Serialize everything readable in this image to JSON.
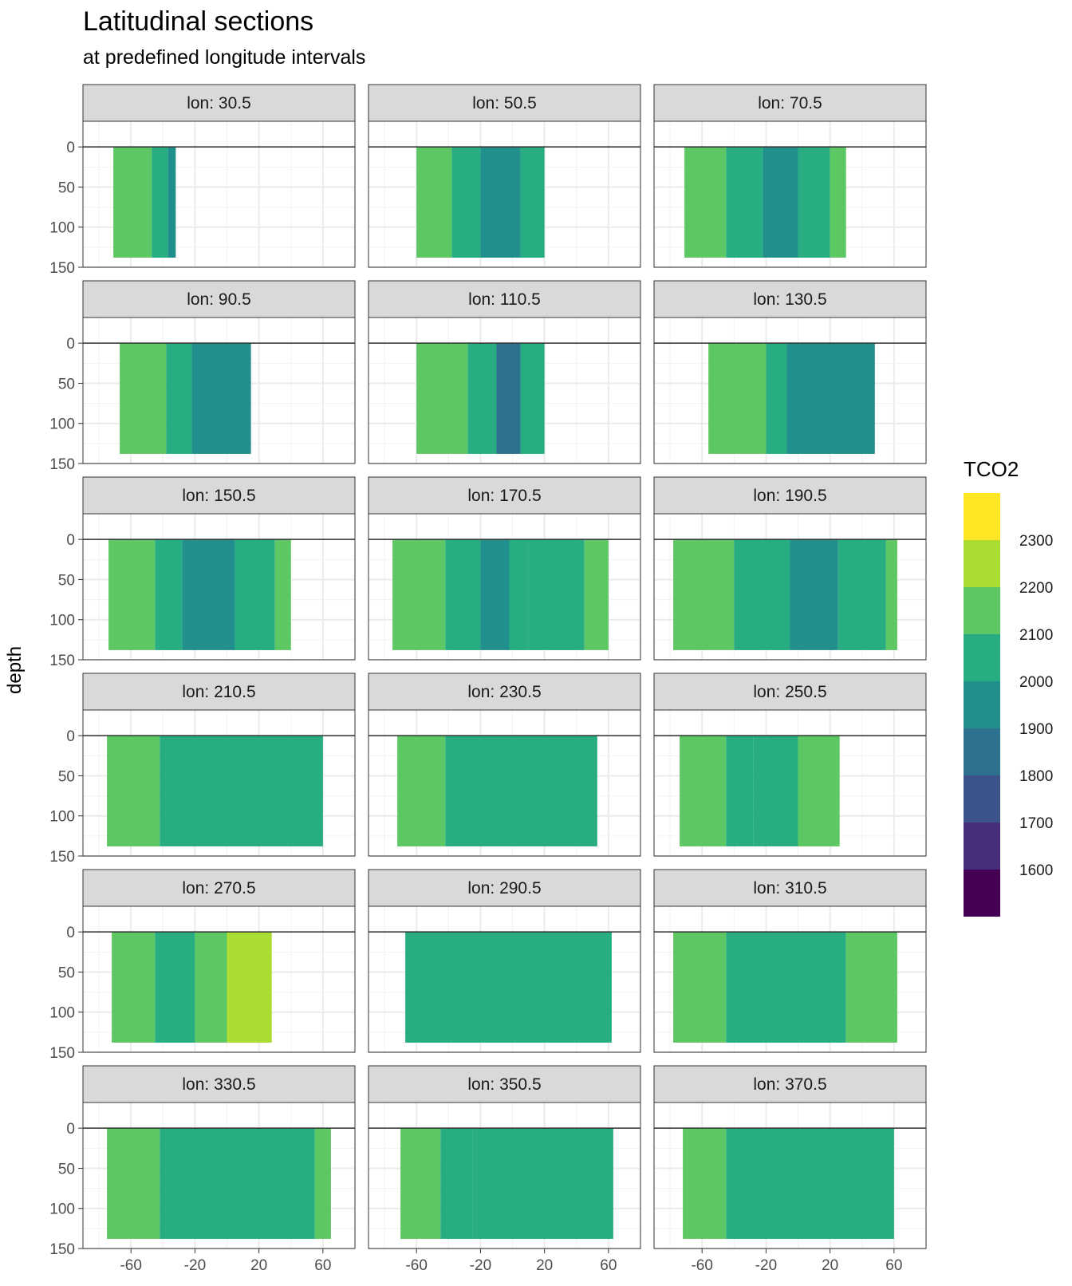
{
  "chart_data": {
    "type": "heatmap",
    "title": "Latitudinal sections",
    "subtitle": "at predefined longitude intervals",
    "ylabel": "depth",
    "xlabel": "",
    "facet_label_prefix": "lon: ",
    "x_ticks": [
      -60,
      -20,
      20,
      60
    ],
    "x_range": [
      -90,
      80
    ],
    "y_ticks": [
      0,
      50,
      100,
      150
    ],
    "y_range": [
      -32,
      150
    ],
    "y_reversed": true,
    "legend": {
      "title": "TCO2",
      "breaks": [
        2300,
        2200,
        2100,
        2000,
        1900,
        1800,
        1700,
        1600
      ],
      "bins": [
        {
          "range": [
            1500,
            1600
          ],
          "color": "#440154"
        },
        {
          "range": [
            1600,
            1700
          ],
          "color": "#472D7B"
        },
        {
          "range": [
            1700,
            1800
          ],
          "color": "#3B528B"
        },
        {
          "range": [
            1800,
            1900
          ],
          "color": "#2C728E"
        },
        {
          "range": [
            1900,
            2000
          ],
          "color": "#21908C"
        },
        {
          "range": [
            2000,
            2100
          ],
          "color": "#27AD81"
        },
        {
          "range": [
            2100,
            2200
          ],
          "color": "#5DC863"
        },
        {
          "range": [
            2200,
            2300
          ],
          "color": "#AADC32"
        },
        {
          "range": [
            2300,
            2400
          ],
          "color": "#FDE725"
        }
      ],
      "position": "right"
    },
    "facets": [
      {
        "lon": "30.5",
        "lat_extent": [
          -71,
          -32
        ],
        "depth_max": 138,
        "bands": [
          {
            "from": -71,
            "to": -47,
            "tco2": 2150
          },
          {
            "from": -47,
            "to": -37,
            "tco2": 2050
          },
          {
            "from": -37,
            "to": -32,
            "tco2": 1950
          }
        ]
      },
      {
        "lon": "50.5",
        "lat_extent": [
          -60,
          20
        ],
        "depth_max": 138,
        "bands": [
          {
            "from": -60,
            "to": -38,
            "tco2": 2150
          },
          {
            "from": -38,
            "to": -20,
            "tco2": 2050
          },
          {
            "from": -20,
            "to": 5,
            "tco2": 1950
          },
          {
            "from": 5,
            "to": 20,
            "tco2": 2050
          }
        ]
      },
      {
        "lon": "70.5",
        "lat_extent": [
          -71,
          30
        ],
        "depth_max": 138,
        "bands": [
          {
            "from": -71,
            "to": -45,
            "tco2": 2150
          },
          {
            "from": -45,
            "to": -22,
            "tco2": 2050
          },
          {
            "from": -22,
            "to": 0,
            "tco2": 1950
          },
          {
            "from": 0,
            "to": 20,
            "tco2": 2050
          },
          {
            "from": 20,
            "to": 30,
            "tco2": 2150
          }
        ]
      },
      {
        "lon": "90.5",
        "lat_extent": [
          -67,
          15
        ],
        "depth_max": 138,
        "bands": [
          {
            "from": -67,
            "to": -38,
            "tco2": 2150
          },
          {
            "from": -38,
            "to": -22,
            "tco2": 2050
          },
          {
            "from": -22,
            "to": 15,
            "tco2": 1950
          }
        ]
      },
      {
        "lon": "110.5",
        "lat_extent": [
          -60,
          20
        ],
        "depth_max": 138,
        "bands": [
          {
            "from": -60,
            "to": -28,
            "tco2": 2150
          },
          {
            "from": -28,
            "to": -10,
            "tco2": 2050
          },
          {
            "from": -10,
            "to": 5,
            "tco2": 1850
          },
          {
            "from": 5,
            "to": 20,
            "tco2": 2050
          }
        ]
      },
      {
        "lon": "130.5",
        "lat_extent": [
          -56,
          48
        ],
        "depth_max": 138,
        "bands": [
          {
            "from": -56,
            "to": -20,
            "tco2": 2150
          },
          {
            "from": -20,
            "to": -7,
            "tco2": 2050
          },
          {
            "from": -7,
            "to": 48,
            "tco2": 1950
          }
        ]
      },
      {
        "lon": "150.5",
        "lat_extent": [
          -74,
          40
        ],
        "depth_max": 138,
        "bands": [
          {
            "from": -74,
            "to": -45,
            "tco2": 2150
          },
          {
            "from": -45,
            "to": -28,
            "tco2": 2050
          },
          {
            "from": -28,
            "to": 5,
            "tco2": 1950
          },
          {
            "from": 5,
            "to": 30,
            "tco2": 2050
          },
          {
            "from": 30,
            "to": 40,
            "tco2": 2150
          }
        ]
      },
      {
        "lon": "170.5",
        "lat_extent": [
          -75,
          60
        ],
        "depth_max": 138,
        "bands": [
          {
            "from": -75,
            "to": -42,
            "tco2": 2150
          },
          {
            "from": -42,
            "to": -20,
            "tco2": 2050
          },
          {
            "from": -20,
            "to": -2,
            "tco2": 1950
          },
          {
            "from": -2,
            "to": 10,
            "tco2": 2050
          },
          {
            "from": 10,
            "to": 45,
            "tco2": 2050
          },
          {
            "from": 45,
            "to": 60,
            "tco2": 2150
          }
        ]
      },
      {
        "lon": "190.5",
        "lat_extent": [
          -78,
          62
        ],
        "depth_max": 138,
        "bands": [
          {
            "from": -78,
            "to": -40,
            "tco2": 2150
          },
          {
            "from": -40,
            "to": -5,
            "tco2": 2050
          },
          {
            "from": -5,
            "to": 25,
            "tco2": 1950
          },
          {
            "from": 25,
            "to": 55,
            "tco2": 2050
          },
          {
            "from": 55,
            "to": 62,
            "tco2": 2150
          }
        ]
      },
      {
        "lon": "210.5",
        "lat_extent": [
          -75,
          60
        ],
        "depth_max": 138,
        "bands": [
          {
            "from": -75,
            "to": -42,
            "tco2": 2150
          },
          {
            "from": -42,
            "to": 60,
            "tco2": 2050
          }
        ]
      },
      {
        "lon": "230.5",
        "lat_extent": [
          -72,
          53
        ],
        "depth_max": 138,
        "bands": [
          {
            "from": -72,
            "to": -42,
            "tco2": 2150
          },
          {
            "from": -42,
            "to": 53,
            "tco2": 2050
          }
        ]
      },
      {
        "lon": "250.5",
        "lat_extent": [
          -74,
          26
        ],
        "depth_max": 138,
        "bands": [
          {
            "from": -74,
            "to": -45,
            "tco2": 2150
          },
          {
            "from": -45,
            "to": -28,
            "tco2": 2050
          },
          {
            "from": -28,
            "to": 0,
            "tco2": 2050
          },
          {
            "from": 0,
            "to": 26,
            "tco2": 2150
          }
        ]
      },
      {
        "lon": "270.5",
        "lat_extent": [
          -72,
          28
        ],
        "depth_max": 138,
        "bands": [
          {
            "from": -72,
            "to": -45,
            "tco2": 2150
          },
          {
            "from": -45,
            "to": -20,
            "tco2": 2050
          },
          {
            "from": -20,
            "to": 0,
            "tco2": 2150
          },
          {
            "from": 0,
            "to": 28,
            "tco2": 2250
          }
        ]
      },
      {
        "lon": "290.5",
        "lat_extent": [
          -67,
          62
        ],
        "depth_max": 138,
        "bands": [
          {
            "from": -67,
            "to": -10,
            "tco2": 2050
          },
          {
            "from": -10,
            "to": 62,
            "tco2": 2050
          }
        ]
      },
      {
        "lon": "310.5",
        "lat_extent": [
          -78,
          62
        ],
        "depth_max": 138,
        "bands": [
          {
            "from": -78,
            "to": -45,
            "tco2": 2150
          },
          {
            "from": -45,
            "to": 30,
            "tco2": 2050
          },
          {
            "from": 30,
            "to": 62,
            "tco2": 2150
          }
        ]
      },
      {
        "lon": "330.5",
        "lat_extent": [
          -75,
          65
        ],
        "depth_max": 138,
        "bands": [
          {
            "from": -75,
            "to": -42,
            "tco2": 2150
          },
          {
            "from": -42,
            "to": 55,
            "tco2": 2050
          },
          {
            "from": 55,
            "to": 65,
            "tco2": 2150
          }
        ]
      },
      {
        "lon": "350.5",
        "lat_extent": [
          -70,
          63
        ],
        "depth_max": 138,
        "bands": [
          {
            "from": -70,
            "to": -45,
            "tco2": 2150
          },
          {
            "from": -45,
            "to": -25,
            "tco2": 2050
          },
          {
            "from": -25,
            "to": 63,
            "tco2": 2050
          }
        ]
      },
      {
        "lon": "370.5",
        "lat_extent": [
          -72,
          60
        ],
        "depth_max": 138,
        "bands": [
          {
            "from": -72,
            "to": -45,
            "tco2": 2150
          },
          {
            "from": -45,
            "to": -10,
            "tco2": 2050
          },
          {
            "from": -10,
            "to": 60,
            "tco2": 2050
          }
        ]
      }
    ]
  }
}
